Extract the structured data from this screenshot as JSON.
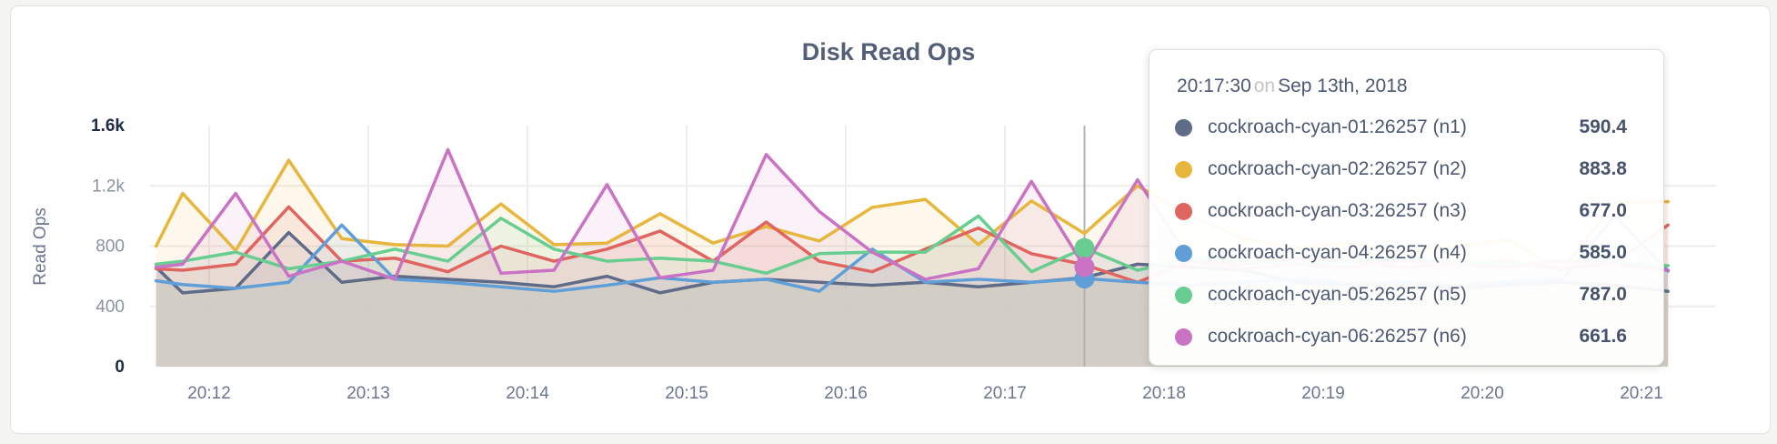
{
  "page": {
    "background": "#f4f4f2"
  },
  "chart_data": {
    "type": "line",
    "title": "Disk Read Ops",
    "ylabel": "Read Ops",
    "xlabel": "",
    "ylim": [
      0,
      1600
    ],
    "grid": true,
    "y_ticks": [
      {
        "label": "0",
        "value": 0
      },
      {
        "label": "400",
        "value": 400
      },
      {
        "label": "800",
        "value": 800
      },
      {
        "label": "1.2k",
        "value": 1200
      },
      {
        "label": "1.6k",
        "value": 1600
      }
    ],
    "x_ticks": [
      {
        "label": "20:12",
        "time": "20:12:00"
      },
      {
        "label": "20:13",
        "time": "20:13:00"
      },
      {
        "label": "20:14",
        "time": "20:14:00"
      },
      {
        "label": "20:15",
        "time": "20:15:00"
      },
      {
        "label": "20:16",
        "time": "20:16:00"
      },
      {
        "label": "20:17",
        "time": "20:17:00"
      },
      {
        "label": "20:18",
        "time": "20:18:00"
      },
      {
        "label": "20:19",
        "time": "20:19:00"
      },
      {
        "label": "20:20",
        "time": "20:20:00"
      },
      {
        "label": "20:21",
        "time": "20:21:00"
      }
    ],
    "x": [
      "20:11:40",
      "20:11:50",
      "20:12:10",
      "20:12:30",
      "20:12:50",
      "20:13:10",
      "20:13:30",
      "20:13:50",
      "20:14:10",
      "20:14:30",
      "20:14:50",
      "20:15:10",
      "20:15:30",
      "20:15:50",
      "20:16:10",
      "20:16:30",
      "20:16:50",
      "20:17:10",
      "20:17:30",
      "20:17:50",
      "20:18:10",
      "20:18:30",
      "20:18:50",
      "20:19:10",
      "20:19:30",
      "20:19:50",
      "20:20:10",
      "20:20:30",
      "20:20:50",
      "20:21:10"
    ],
    "series": [
      {
        "id": "n1",
        "name": "cockroach-cyan-01:26257 (n1)",
        "color": "#5f6c87",
        "values": [
          660,
          490,
          520,
          890,
          560,
          600,
          580,
          560,
          530,
          600,
          490,
          560,
          580,
          560,
          540,
          560,
          530,
          560,
          590.4,
          680,
          660,
          640,
          560,
          540,
          560,
          520,
          540,
          560,
          540,
          500
        ]
      },
      {
        "id": "n2",
        "name": "cockroach-cyan-02:26257 (n2)",
        "color": "#e7b63d",
        "values": [
          800,
          1150,
          770,
          1370,
          850,
          810,
          800,
          1080,
          810,
          820,
          1015,
          820,
          930,
          834,
          1057,
          1110,
          810,
          1100,
          883.8,
          1200,
          1000,
          850,
          790,
          820,
          760,
          800,
          840,
          640,
          1090,
          1095
        ]
      },
      {
        "id": "n3",
        "name": "cockroach-cyan-03:26257 (n3)",
        "color": "#e0645f",
        "values": [
          650,
          640,
          680,
          1060,
          700,
          720,
          630,
          800,
          700,
          780,
          900,
          700,
          960,
          700,
          630,
          780,
          920,
          750,
          677,
          560,
          700,
          680,
          720,
          700,
          660,
          680,
          700,
          650,
          690,
          940
        ]
      },
      {
        "id": "n4",
        "name": "cockroach-cyan-04:26257 (n4)",
        "color": "#5f9ed7",
        "values": [
          570,
          545,
          520,
          560,
          940,
          580,
          560,
          530,
          500,
          540,
          590,
          560,
          580,
          500,
          780,
          560,
          580,
          560,
          585,
          560,
          540,
          560,
          580,
          550,
          560,
          540,
          560,
          580,
          1000,
          634
        ]
      },
      {
        "id": "n5",
        "name": "cockroach-cyan-05:26257 (n5)",
        "color": "#68cd90",
        "values": [
          680,
          700,
          760,
          650,
          700,
          780,
          700,
          985,
          780,
          700,
          720,
          700,
          620,
          750,
          760,
          760,
          1000,
          630,
          787,
          640,
          720,
          700,
          680,
          700,
          720,
          700,
          680,
          700,
          690,
          670
        ]
      },
      {
        "id": "n6",
        "name": "cockroach-cyan-06:26257 (n6)",
        "color": "#ca72c4",
        "values": [
          660,
          680,
          1150,
          600,
          700,
          580,
          1440,
          620,
          640,
          1208,
          590,
          640,
          1408,
          1030,
          760,
          580,
          650,
          1230,
          661.6,
          1240,
          700,
          650,
          680,
          660,
          700,
          680,
          660,
          700,
          680,
          640
        ]
      }
    ],
    "hover": {
      "time": "20:17:30",
      "visible_dots": [
        "n5",
        "n4",
        "n6"
      ]
    }
  },
  "tooltip": {
    "time": "20:17:30",
    "conjunction": "on",
    "date": "Sep 13th, 2018",
    "series": [
      {
        "label": "cockroach-cyan-01:26257 (n1)",
        "value": "590.4",
        "color": "#5f6c87"
      },
      {
        "label": "cockroach-cyan-02:26257 (n2)",
        "value": "883.8",
        "color": "#e7b63d"
      },
      {
        "label": "cockroach-cyan-03:26257 (n3)",
        "value": "677.0",
        "color": "#e0645f"
      },
      {
        "label": "cockroach-cyan-04:26257 (n4)",
        "value": "585.0",
        "color": "#5f9ed7"
      },
      {
        "label": "cockroach-cyan-05:26257 (n5)",
        "value": "787.0",
        "color": "#68cd90"
      },
      {
        "label": "cockroach-cyan-06:26257 (n6)",
        "value": "661.6",
        "color": "#ca72c4"
      }
    ]
  },
  "colors": {
    "grid": "#ededeb",
    "hover_line": "#b3b3b3",
    "floor_fill": "#d2cec5",
    "axis_text": "#6b7590",
    "y_tick_mid": "#8992a4",
    "y_tick_edge": "#202b45"
  }
}
